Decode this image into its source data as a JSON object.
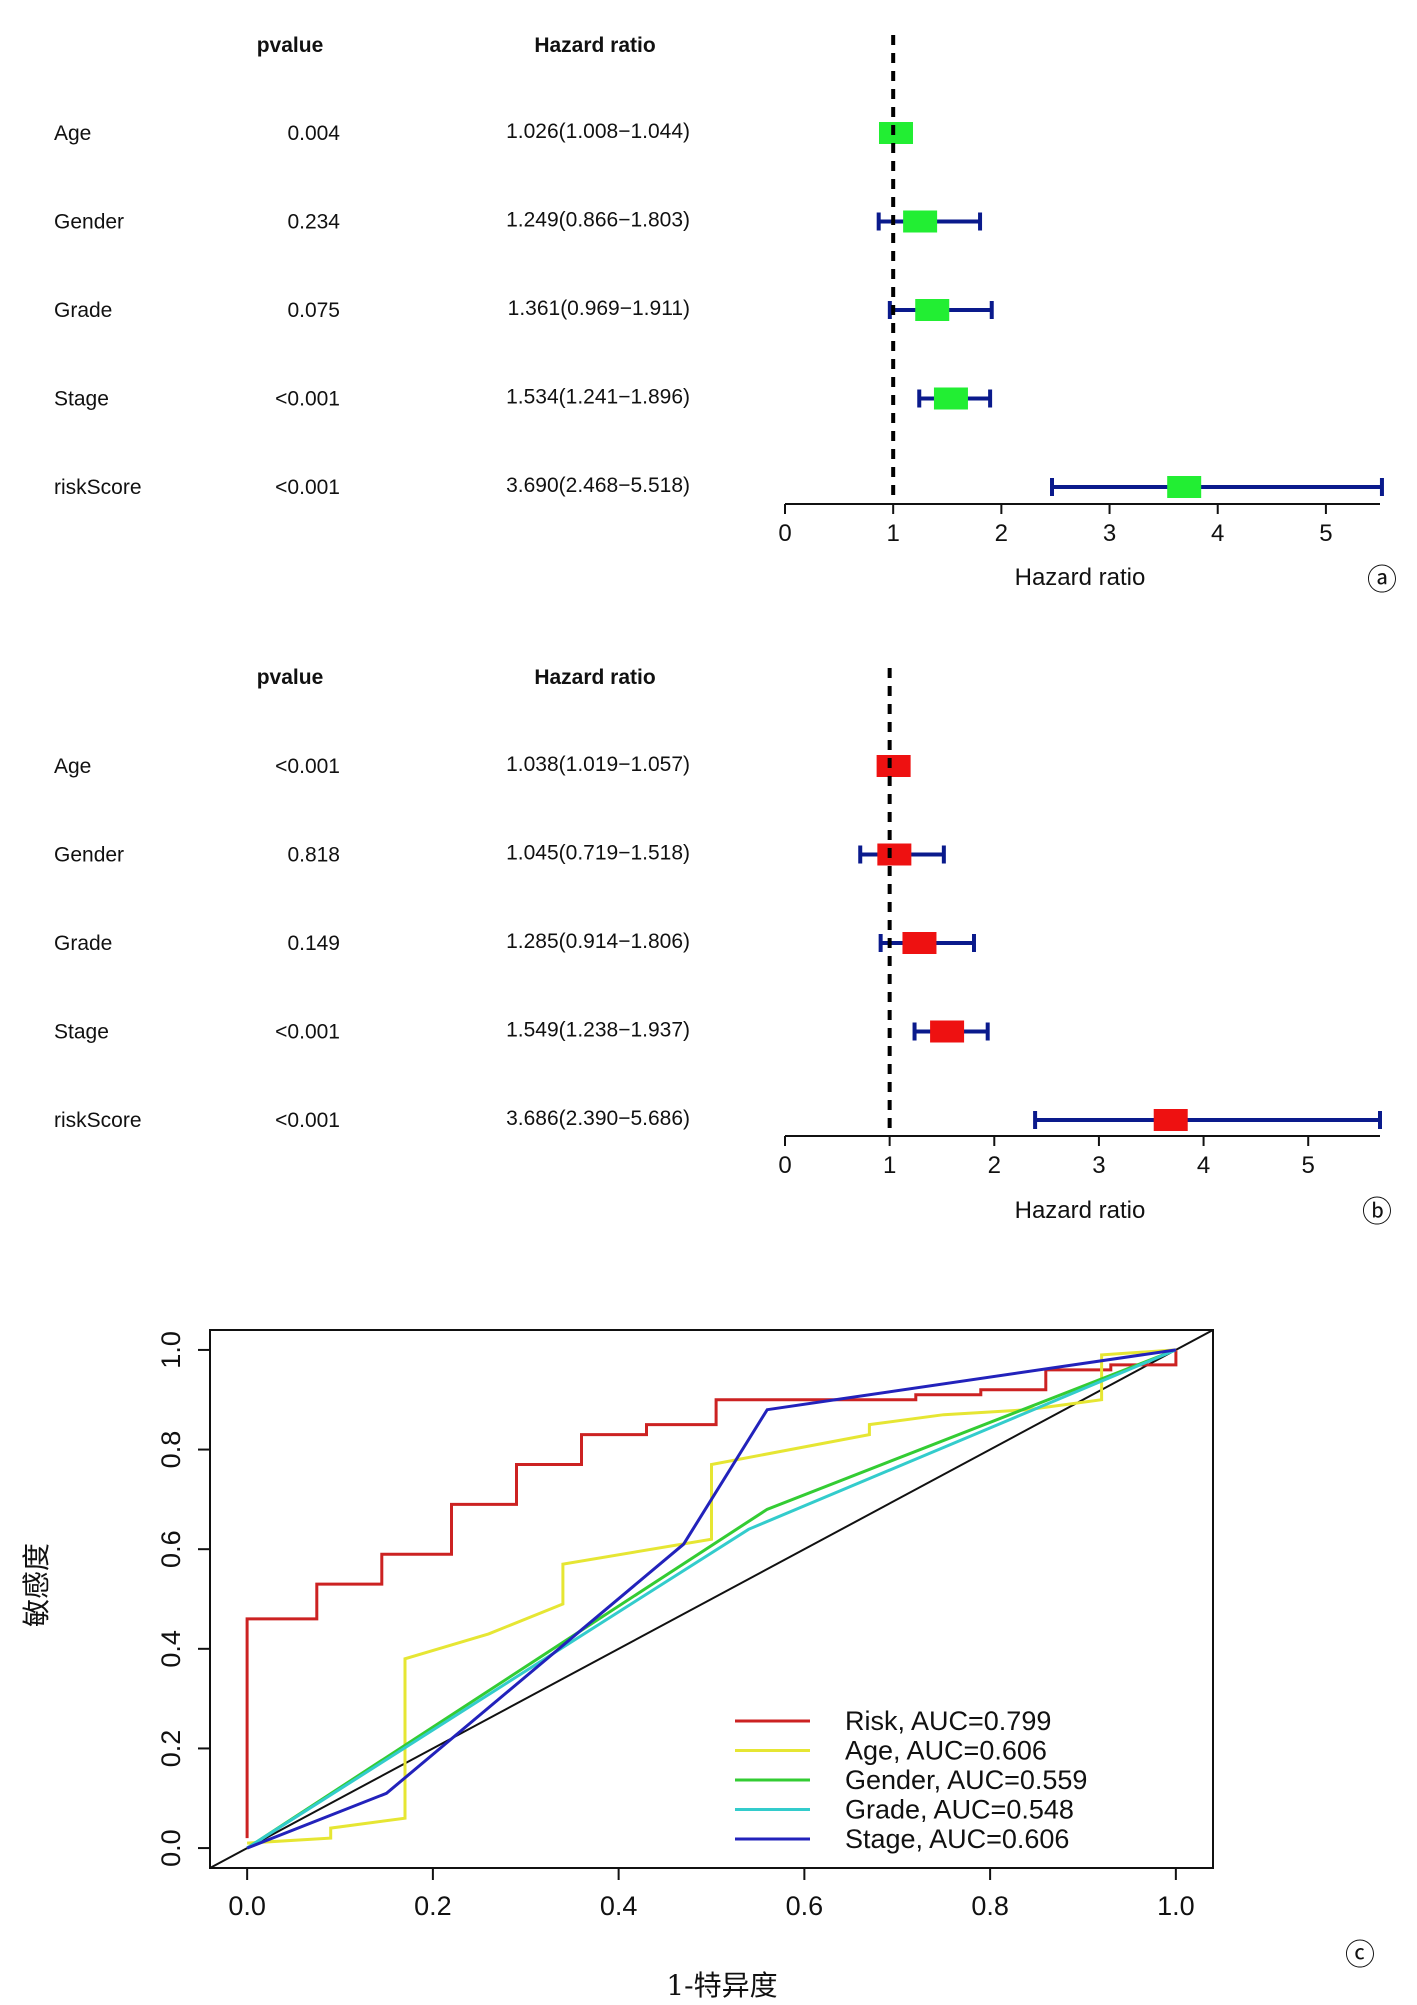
{
  "chart_data": [
    {
      "type": "forest",
      "panel_label": "ⓐ",
      "columns": {
        "pvalue": "pvalue",
        "hr": "Hazard ratio"
      },
      "xlabel": "Hazard ratio",
      "xlim": [
        0,
        5.5
      ],
      "xticks": [
        "0",
        "1",
        "2",
        "3",
        "4",
        "5"
      ],
      "reference_line": 1,
      "box_color": "#22ee33",
      "whisker_color": "#0a1a8c",
      "rows": [
        {
          "name": "Age",
          "pvalue": "0.004",
          "hr_text": "1.026(1.008−1.044)",
          "hr": 1.026,
          "lo": 1.008,
          "hi": 1.044
        },
        {
          "name": "Gender",
          "pvalue": "0.234",
          "hr_text": "1.249(0.866−1.803)",
          "hr": 1.249,
          "lo": 0.866,
          "hi": 1.803
        },
        {
          "name": "Grade",
          "pvalue": "0.075",
          "hr_text": "1.361(0.969−1.911)",
          "hr": 1.361,
          "lo": 0.969,
          "hi": 1.911
        },
        {
          "name": "Stage",
          "pvalue": "<0.001",
          "hr_text": "1.534(1.241−1.896)",
          "hr": 1.534,
          "lo": 1.241,
          "hi": 1.896
        },
        {
          "name": "riskScore",
          "pvalue": "<0.001",
          "hr_text": "3.690(2.468−5.518)",
          "hr": 3.69,
          "lo": 2.468,
          "hi": 5.518
        }
      ]
    },
    {
      "type": "forest",
      "panel_label": "ⓑ",
      "columns": {
        "pvalue": "pvalue",
        "hr": "Hazard ratio"
      },
      "xlabel": "Hazard ratio",
      "xlim": [
        0,
        5.686
      ],
      "xticks": [
        "0",
        "1",
        "2",
        "3",
        "4",
        "5"
      ],
      "reference_line": 1,
      "box_color": "#ee1111",
      "whisker_color": "#0a1a8c",
      "rows": [
        {
          "name": "Age",
          "pvalue": "<0.001",
          "hr_text": "1.038(1.019−1.057)",
          "hr": 1.038,
          "lo": 1.019,
          "hi": 1.057
        },
        {
          "name": "Gender",
          "pvalue": "0.818",
          "hr_text": "1.045(0.719−1.518)",
          "hr": 1.045,
          "lo": 0.719,
          "hi": 1.518
        },
        {
          "name": "Grade",
          "pvalue": "0.149",
          "hr_text": "1.285(0.914−1.806)",
          "hr": 1.285,
          "lo": 0.914,
          "hi": 1.806
        },
        {
          "name": "Stage",
          "pvalue": "<0.001",
          "hr_text": "1.549(1.238−1.937)",
          "hr": 1.549,
          "lo": 1.238,
          "hi": 1.937
        },
        {
          "name": "riskScore",
          "pvalue": "<0.001",
          "hr_text": "3.686(2.390−5.686)",
          "hr": 3.686,
          "lo": 2.39,
          "hi": 5.686
        }
      ]
    },
    {
      "type": "line",
      "subtype": "roc",
      "panel_label": "ⓒ",
      "xlabel": "1-特异度",
      "ylabel": "敏感度",
      "xlim": [
        -0.04,
        1.04
      ],
      "ylim": [
        -0.04,
        1.04
      ],
      "xticks": [
        "0.0",
        "0.2",
        "0.4",
        "0.6",
        "0.8",
        "1.0"
      ],
      "yticks": [
        "0.0",
        "0.2",
        "0.4",
        "0.6",
        "0.8",
        "1.0"
      ],
      "diagonal": true,
      "legend_position": "bottom-right",
      "series": [
        {
          "name": "Risk, AUC=0.799",
          "color": "#cc2222",
          "points": [
            [
              0,
              0.02
            ],
            [
              0,
              0.46
            ],
            [
              0.075,
              0.46
            ],
            [
              0.075,
              0.53
            ],
            [
              0.145,
              0.53
            ],
            [
              0.145,
              0.59
            ],
            [
              0.22,
              0.59
            ],
            [
              0.22,
              0.69
            ],
            [
              0.29,
              0.69
            ],
            [
              0.29,
              0.77
            ],
            [
              0.36,
              0.77
            ],
            [
              0.36,
              0.83
            ],
            [
              0.43,
              0.83
            ],
            [
              0.43,
              0.85
            ],
            [
              0.505,
              0.85
            ],
            [
              0.505,
              0.9
            ],
            [
              0.72,
              0.9
            ],
            [
              0.72,
              0.91
            ],
            [
              0.79,
              0.91
            ],
            [
              0.79,
              0.92
            ],
            [
              0.86,
              0.92
            ],
            [
              0.86,
              0.96
            ],
            [
              0.93,
              0.96
            ],
            [
              0.93,
              0.97
            ],
            [
              1,
              0.97
            ],
            [
              1,
              1
            ]
          ]
        },
        {
          "name": "Age, AUC=0.606",
          "color": "#e6e633",
          "points": [
            [
              0,
              0.01
            ],
            [
              0.09,
              0.02
            ],
            [
              0.09,
              0.04
            ],
            [
              0.17,
              0.06
            ],
            [
              0.17,
              0.38
            ],
            [
              0.26,
              0.43
            ],
            [
              0.34,
              0.49
            ],
            [
              0.34,
              0.57
            ],
            [
              0.5,
              0.62
            ],
            [
              0.5,
              0.77
            ],
            [
              0.67,
              0.83
            ],
            [
              0.67,
              0.85
            ],
            [
              0.75,
              0.87
            ],
            [
              0.84,
              0.88
            ],
            [
              0.92,
              0.9
            ],
            [
              0.92,
              0.99
            ],
            [
              1,
              1
            ]
          ]
        },
        {
          "name": "Gender, AUC=0.559",
          "color": "#33cc33",
          "points": [
            [
              0,
              0
            ],
            [
              0.56,
              0.68
            ],
            [
              1,
              1
            ]
          ]
        },
        {
          "name": "Grade, AUC=0.548",
          "color": "#33cccc",
          "points": [
            [
              0,
              0
            ],
            [
              0.54,
              0.64
            ],
            [
              1,
              1
            ]
          ]
        },
        {
          "name": "Stage, AUC=0.606",
          "color": "#2222bb",
          "points": [
            [
              0,
              0
            ],
            [
              0.15,
              0.11
            ],
            [
              0.47,
              0.61
            ],
            [
              0.56,
              0.88
            ],
            [
              1,
              1
            ]
          ]
        }
      ]
    }
  ]
}
